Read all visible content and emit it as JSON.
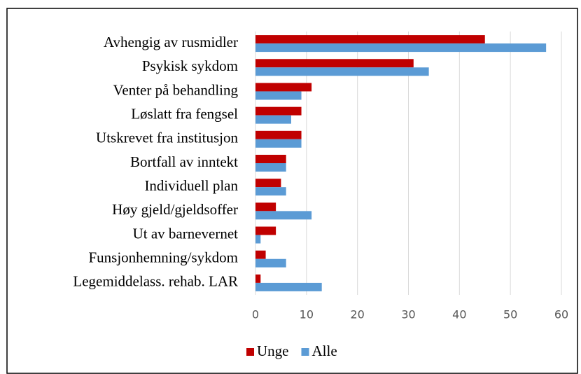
{
  "chart_data": {
    "type": "barh",
    "categories": [
      "Avhengig av rusmidler",
      "Psykisk sykdom",
      "Venter på behandling",
      "Løslatt fra fengsel",
      "Utskrevet fra institusjon",
      "Bortfall av inntekt",
      "Individuell plan",
      "Høy gjeld/gjeldsoffer",
      "Ut av barnevernet",
      "Funsjonhemning/sykdom",
      "Legemiddelass. rehab. LAR"
    ],
    "series": [
      {
        "name": "Unge",
        "color": "#c00000",
        "values": [
          45,
          31,
          11,
          9,
          9,
          6,
          5,
          4,
          4,
          2,
          1
        ]
      },
      {
        "name": "Alle",
        "color": "#5b9bd5",
        "values": [
          57,
          34,
          9,
          7,
          9,
          6,
          6,
          11,
          1,
          6,
          13
        ]
      }
    ],
    "xlim": [
      0,
      60
    ],
    "xticks": [
      0,
      10,
      20,
      30,
      40,
      50,
      60
    ],
    "grid": true,
    "legend": "bottom"
  }
}
